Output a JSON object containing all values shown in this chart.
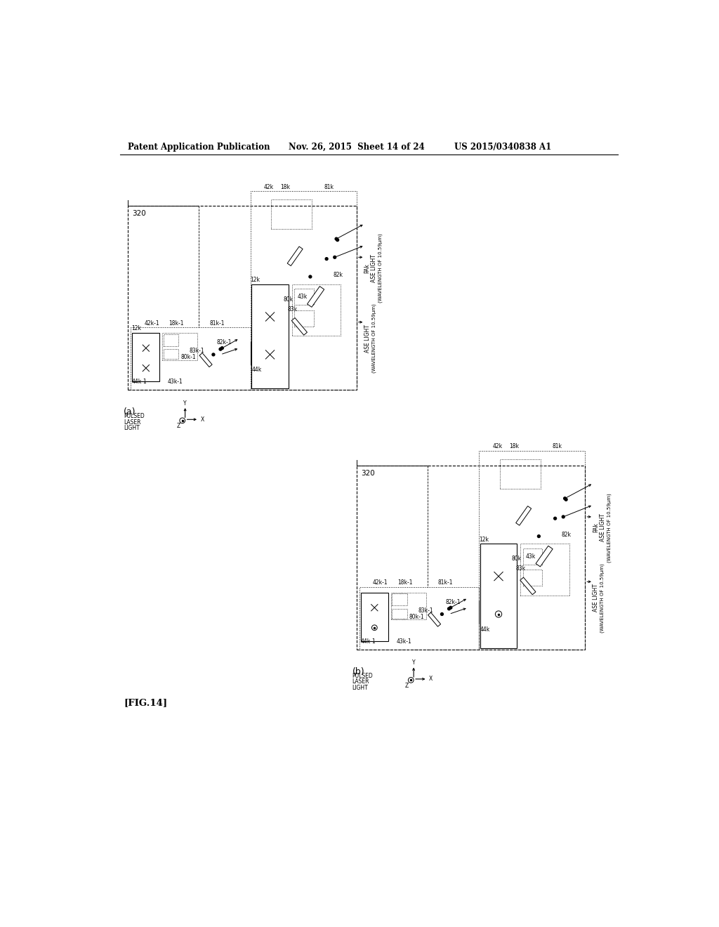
{
  "bg_color": "#ffffff",
  "header_left": "Patent Application Publication",
  "header_mid": "Nov. 26, 2015  Sheet 14 of 24",
  "header_right": "US 2015/0340838 A1",
  "fig_label": "[FIG.14]",
  "label_320": "320"
}
